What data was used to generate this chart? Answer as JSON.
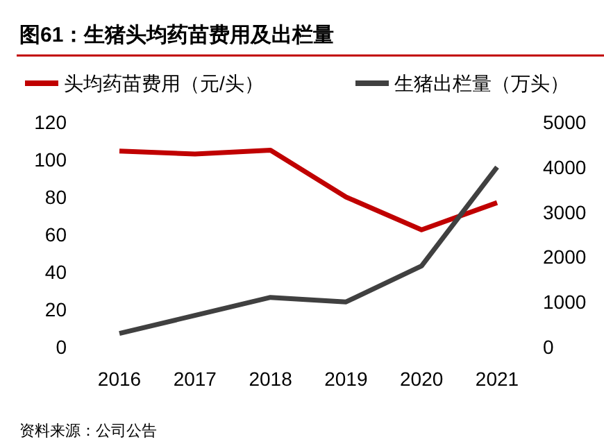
{
  "chart_data": {
    "type": "line",
    "title": "图61：生猪头均药苗费用及出栏量",
    "categories": [
      "2016",
      "2017",
      "2018",
      "2019",
      "2020",
      "2021"
    ],
    "series": [
      {
        "name": "头均药苗费用（元/头）",
        "color": "#c00000",
        "values": [
          104.5,
          103,
          105,
          80,
          62.5,
          77
        ]
      },
      {
        "name": "生猪出栏量（万头）",
        "color": "#404040",
        "values": [
          300,
          700,
          1100,
          1000,
          1800,
          4000
        ],
        "axis": "y2"
      }
    ],
    "ylim": [
      0,
      120
    ],
    "yticks": [
      0,
      20,
      40,
      60,
      80,
      100,
      120
    ],
    "y2lim": [
      0,
      5000
    ],
    "y2ticks": [
      0,
      1000,
      2000,
      3000,
      4000,
      5000
    ],
    "legend": "top",
    "grid": false,
    "marker": "none",
    "line_style": "solid",
    "annotations": [
      "资料来源：公司公告"
    ]
  }
}
